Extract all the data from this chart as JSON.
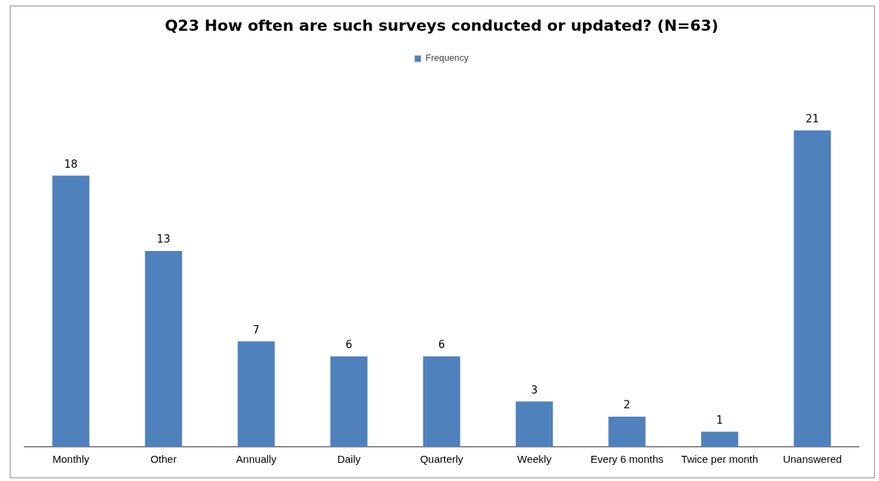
{
  "chart_data": {
    "type": "bar",
    "title": "Q23 How often are such surveys conducted or updated? (N=63)",
    "categories": [
      "Monthly",
      "Other",
      "Annually",
      "Daily",
      "Quarterly",
      "Weekly",
      "Every 6 months",
      "Twice per month",
      "Unanswered"
    ],
    "series": [
      {
        "name": "Frequency",
        "color": "#4f81bd",
        "values": [
          18,
          13,
          7,
          6,
          6,
          3,
          2,
          1,
          21
        ]
      }
    ],
    "data_labels": true,
    "legend": "top",
    "grid": false,
    "tick_labels": "x"
  }
}
